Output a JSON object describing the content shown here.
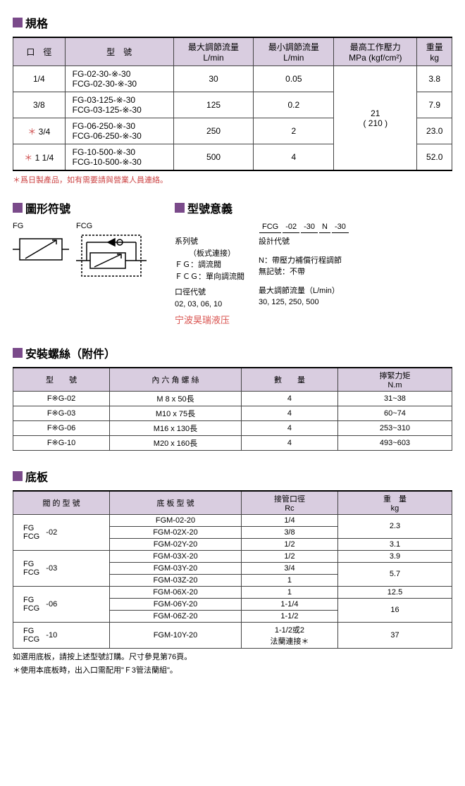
{
  "sections": {
    "spec_title": "規格",
    "symbol_title": "圖形符號",
    "model_meaning_title": "型號意義",
    "screws_title": "安裝螺絲（附件）",
    "base_title": "底板"
  },
  "spec_table": {
    "headers": {
      "bore": "口　徑",
      "model": "型　號",
      "max_flow": "最大調節流量\nL/min",
      "min_flow": "最小調節流量\nL/min",
      "max_pressure": "最高工作壓力\nMPa (kgf/cm²)",
      "weight": "重量\nkg"
    },
    "rows": [
      {
        "bore": "1/4",
        "model1": "FG-02-30-※-30",
        "model2": "FCG-02-30-※-30",
        "max_flow": "30",
        "min_flow": "0.05",
        "weight": "3.8"
      },
      {
        "bore": "3/8",
        "model1": "FG-03-125-※-30",
        "model2": "FCG-03-125-※-30",
        "max_flow": "125",
        "min_flow": "0.2",
        "weight": "7.9"
      },
      {
        "bore": "3/4",
        "star": "＊",
        "model1": "FG-06-250-※-30",
        "model2": "FCG-06-250-※-30",
        "max_flow": "250",
        "min_flow": "2",
        "weight": "23.0"
      },
      {
        "bore": "1 1/4",
        "star": "＊",
        "model1": "FG-10-500-※-30",
        "model2": "FCG-10-500-※-30",
        "max_flow": "500",
        "min_flow": "4",
        "weight": "52.0"
      }
    ],
    "pressure": {
      "line1": "21",
      "line2": "( 210 )"
    },
    "note": "＊爲日製產品，如有需要請與營業人員連絡。"
  },
  "symbols": {
    "fg": "FG",
    "fcg": "FCG"
  },
  "model_meaning": {
    "example": {
      "p1": "FCG",
      "p2": "-02",
      "p3": "-30",
      "p4": "N",
      "p5": "-30"
    },
    "left": {
      "series_label": "系列號",
      "series_sub": "（板式連接）",
      "fg": "ＦＧ：調流閥",
      "fcg": "ＦＣＧ：單向調流閥",
      "bore_label": "口徑代號",
      "bore_vals": "02, 03, 06, 10"
    },
    "right": {
      "design": "設計代號",
      "n_label": "N：帶壓力補償行程調節",
      "n_none": "無記號：不帶",
      "max_flow_label": "最大調節流量（L/min）",
      "max_flow_vals": "30, 125, 250, 500"
    },
    "watermark": "宁波昊瑞液压"
  },
  "screws_table": {
    "headers": {
      "model": "型　　號",
      "screw": "內 六 角 螺 絲",
      "qty": "數　　量",
      "torque": "擰緊力矩\nN.m"
    },
    "rows": [
      {
        "model": "F※G-02",
        "screw": "M 8 x  50長",
        "qty": "4",
        "torque": "31~38"
      },
      {
        "model": "F※G-03",
        "screw": "M10 x  75長",
        "qty": "4",
        "torque": "60~74"
      },
      {
        "model": "F※G-06",
        "screw": "M16 x 130長",
        "qty": "4",
        "torque": "253~310"
      },
      {
        "model": "F※G-10",
        "screw": "M20 x 160長",
        "qty": "4",
        "torque": "493~603"
      }
    ]
  },
  "base_table": {
    "headers": {
      "valve": "閥 的 型 號",
      "base": "底 板 型 號",
      "port": "接管口徑\nRc",
      "weight": "重　量\nkg"
    },
    "groups": [
      {
        "valve_lines": [
          "FG",
          "FCG"
        ],
        "suffix": "-02",
        "rows": [
          {
            "base": "FGM-02-20",
            "port": "1/4",
            "weight": "2.3",
            "wspan": 2
          },
          {
            "base": "FGM-02X-20",
            "port": "3/8"
          },
          {
            "base": "FGM-02Y-20",
            "port": "1/2",
            "weight": "3.1"
          }
        ]
      },
      {
        "valve_lines": [
          "FG",
          "FCG"
        ],
        "suffix": "-03",
        "rows": [
          {
            "base": "FGM-03X-20",
            "port": "1/2",
            "weight": "3.9"
          },
          {
            "base": "FGM-03Y-20",
            "port": "3/4",
            "weight": "5.7",
            "wspan": 2
          },
          {
            "base": "FGM-03Z-20",
            "port": "1"
          }
        ]
      },
      {
        "valve_lines": [
          "FG",
          "FCG"
        ],
        "suffix": "-06",
        "rows": [
          {
            "base": "FGM-06X-20",
            "port": "1",
            "weight": "12.5"
          },
          {
            "base": "FGM-06Y-20",
            "port": "1-1/4",
            "weight": "16",
            "wspan": 2
          },
          {
            "base": "FGM-06Z-20",
            "port": "1-1/2"
          }
        ]
      },
      {
        "valve_lines": [
          "FG",
          "FCG"
        ],
        "suffix": "-10",
        "rows": [
          {
            "base": "FGM-10Y-20",
            "port": "1-1/2或2\n法蘭連接＊",
            "weight": "37"
          }
        ]
      }
    ],
    "note1": "如選用底板，請按上述型號訂購。尺寸參見第76頁。",
    "note2": "＊使用本底板時，出入口需配用\"Ｆ3管法蘭組\"。"
  }
}
